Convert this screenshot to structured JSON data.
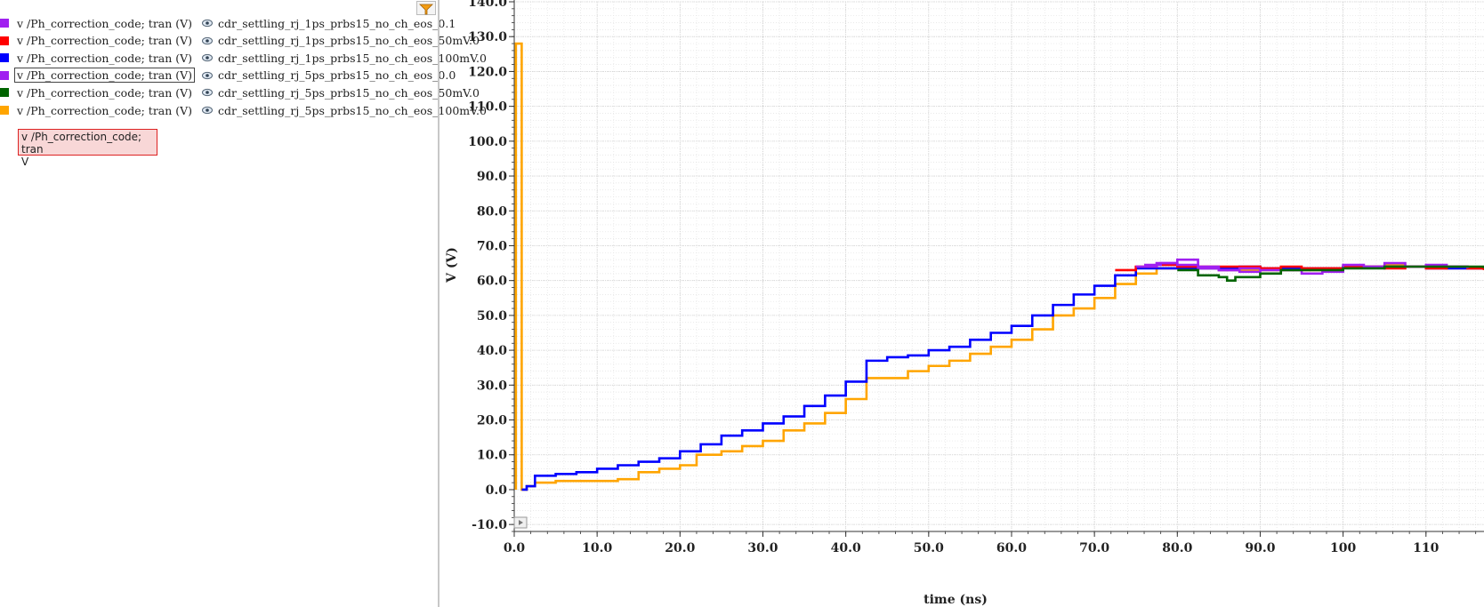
{
  "legend": {
    "entries": [
      {
        "signal": "v /Ph_correction_code; tran (V)",
        "source": "cdr_settling_rj_1ps_prbs15_no_ch_eos_0.1",
        "color": "#a020f0",
        "selected": false
      },
      {
        "signal": "v /Ph_correction_code; tran (V)",
        "source": "cdr_settling_rj_1ps_prbs15_no_ch_eos_50mV.0",
        "color": "#ff0000",
        "selected": false
      },
      {
        "signal": "v /Ph_correction_code; tran (V)",
        "source": "cdr_settling_rj_1ps_prbs15_no_ch_eos_100mV.0",
        "color": "#0000ff",
        "selected": false
      },
      {
        "signal": "v /Ph_correction_code; tran (V)",
        "source": "cdr_settling_rj_5ps_prbs15_no_ch_eos_0.0",
        "color": "#a020f0",
        "selected": true
      },
      {
        "signal": "v /Ph_correction_code; tran (V)",
        "source": "cdr_settling_rj_5ps_prbs15_no_ch_eos_50mV.0",
        "color": "#006400",
        "selected": false
      },
      {
        "signal": "v /Ph_correction_code; tran (V)",
        "source": "cdr_settling_rj_5ps_prbs15_no_ch_eos_100mV.0",
        "color": "#ffa500",
        "selected": false
      }
    ]
  },
  "tooltip": {
    "line1": "v /Ph_correction_code; tran",
    "line2": "V"
  },
  "icons": {
    "eye": "eye-icon",
    "filter": "filter-icon",
    "expand": "expand-arrow-icon"
  },
  "chart_data": {
    "type": "line",
    "xlabel": "time (ns)",
    "ylabel": "V (V)",
    "xlim": [
      0,
      117
    ],
    "ylim": [
      -12,
      140
    ],
    "x_ticks": [
      0,
      10,
      20,
      30,
      40,
      50,
      60,
      70,
      80,
      90,
      100,
      110
    ],
    "x_tick_labels": [
      "0.0",
      "10.0",
      "20.0",
      "30.0",
      "40.0",
      "50.0",
      "60.0",
      "70.0",
      "80.0",
      "90.0",
      "100",
      "110"
    ],
    "y_ticks": [
      -10,
      0,
      10,
      20,
      30,
      40,
      50,
      60,
      70,
      80,
      90,
      100,
      110,
      120,
      130,
      140
    ],
    "y_tick_labels": [
      "-10.0",
      "0.0",
      "10.0",
      "20.0",
      "30.0",
      "40.0",
      "50.0",
      "60.0",
      "70.0",
      "80.0",
      "90.0",
      "100.0",
      "110.0",
      "120.0",
      "130.0",
      "140.0"
    ],
    "grid": true,
    "series": [
      {
        "name": "cdr_settling_rj_5ps_prbs15_no_ch_eos_100mV.0",
        "color": "#ffa500",
        "x": [
          0.2,
          0.2,
          0.9,
          0.9,
          1.5,
          2.5,
          5,
          10,
          12.5,
          15,
          17.5,
          20,
          22,
          25,
          27.5,
          30,
          32.5,
          35,
          37.5,
          40,
          42.5,
          45,
          47.5,
          50,
          52.5,
          55,
          57.5,
          60,
          62.5,
          65,
          67.5,
          70,
          72.5,
          75,
          77.5,
          80,
          82.5,
          85,
          87.5,
          90,
          92.5,
          95,
          97.5,
          100,
          102.5,
          105,
          107.5,
          110,
          112.5,
          115,
          117
        ],
        "y": [
          0,
          128,
          128,
          0,
          1,
          2,
          2.5,
          2.5,
          3,
          5,
          6,
          7,
          10,
          11,
          12.5,
          14,
          17,
          19,
          22,
          26,
          32,
          32,
          34,
          35.5,
          37,
          39,
          41,
          43,
          46,
          50,
          52,
          55,
          59,
          62,
          63.5,
          64,
          63.5,
          63,
          63,
          63,
          63,
          63,
          63.5,
          64,
          64,
          64.5,
          64,
          64,
          63.5,
          63.5,
          63
        ]
      },
      {
        "name": "cdr_settling_rj_1ps_prbs15_no_ch_eos_100mV.0",
        "color": "#0000ff",
        "x": [
          0.9,
          1.5,
          2.5,
          5,
          7.5,
          10,
          12.5,
          15,
          17.5,
          20,
          22.5,
          25,
          27.5,
          30,
          32.5,
          35,
          37.5,
          40,
          42.5,
          45,
          47.5,
          50,
          52.5,
          55,
          57.5,
          60,
          62.5,
          65,
          67.5,
          70,
          72.5,
          75,
          77.5,
          80,
          82.5,
          85,
          87.5,
          90,
          92.5,
          95,
          97.5,
          100,
          102.5,
          105,
          107.5,
          110,
          112.5,
          115,
          117
        ],
        "y": [
          0,
          1,
          4,
          4.5,
          5,
          6,
          7,
          8,
          9,
          11,
          13,
          15.5,
          17,
          19,
          21,
          24,
          27,
          31,
          37,
          38,
          38.5,
          40,
          41,
          43,
          45,
          47,
          50,
          53,
          56,
          58.5,
          61.5,
          63.5,
          63.5,
          63.5,
          63.5,
          63.5,
          64,
          63.5,
          63.5,
          63.5,
          63.5,
          64,
          64,
          64,
          64,
          63.5,
          63.5,
          63.5,
          64
        ]
      },
      {
        "name": "cdr_settling_rj_1ps_prbs15_no_ch_eos_50mV.0",
        "color": "#ff0000",
        "x": [
          72.5,
          75,
          77.5,
          80,
          82.5,
          85,
          87.5,
          90,
          92.5,
          95,
          97.5,
          100,
          102.5,
          105,
          107.5,
          110,
          112.5,
          115,
          117
        ],
        "y": [
          63,
          64,
          64.5,
          64,
          64,
          64,
          64,
          63.5,
          64,
          63.5,
          63.5,
          64,
          64,
          63.5,
          64,
          63.5,
          64,
          63.5,
          63
        ]
      },
      {
        "name": "cdr_settling_rj_1ps_prbs15_no_ch_eos_0.1",
        "color": "#a020f0",
        "x": [
          75,
          77.5,
          80,
          82.5,
          85,
          87.5,
          90,
          92.5,
          95,
          97.5,
          100,
          102.5,
          105,
          107.5,
          110,
          112.5,
          115
        ],
        "y": [
          64,
          65,
          66,
          64,
          63,
          62.5,
          63,
          63,
          62,
          62.5,
          64.5,
          64,
          65,
          64,
          64.5,
          64,
          63.5
        ]
      },
      {
        "name": "cdr_settling_rj_5ps_prbs15_no_ch_eos_0.0",
        "color": "#a020f0",
        "x": [
          76,
          78,
          80,
          82.5,
          85,
          87.5,
          90
        ],
        "y": [
          64.5,
          65,
          64.5,
          63.5,
          63,
          63.5,
          63.5
        ]
      },
      {
        "name": "cdr_settling_rj_5ps_prbs15_no_ch_eos_50mV.0",
        "color": "#006400",
        "x": [
          80,
          82.5,
          85,
          86,
          87,
          90,
          92.5,
          95,
          100,
          105,
          110,
          115,
          117
        ],
        "y": [
          63,
          61.5,
          61,
          60,
          61,
          62,
          63,
          63,
          63.5,
          64,
          64,
          64,
          63.5
        ]
      }
    ]
  }
}
